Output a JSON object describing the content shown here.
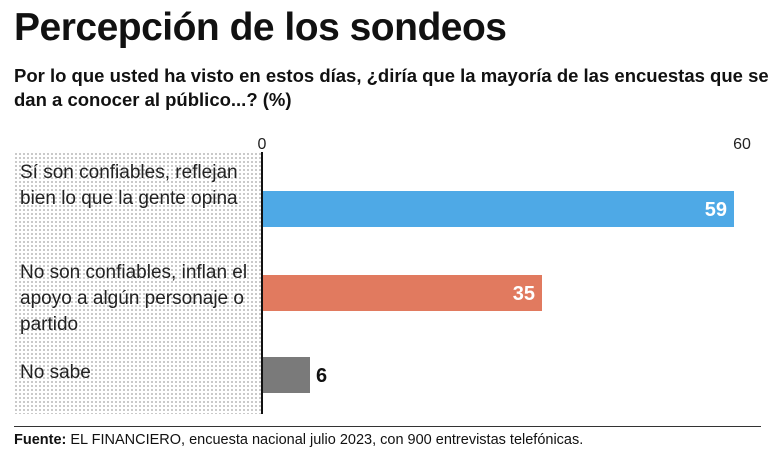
{
  "title": "Percepción de los sondeos",
  "subtitle": "Por lo que usted ha visto en estos días, ¿diría que la mayoría de las encuestas que se dan a conocer al público...? (%)",
  "chart_data": {
    "type": "bar",
    "orientation": "horizontal",
    "categories": [
      "Sí son confiables, reflejan bien lo que la gente opina",
      "No son confiables, inflan el apoyo a algún personaje o partido",
      "No sabe"
    ],
    "values": [
      59,
      35,
      6
    ],
    "value_labels": [
      "59",
      "35",
      "6"
    ],
    "colors": [
      "#4ea9e6",
      "#e17a5f",
      "#7a7a7a"
    ],
    "xlim": [
      0,
      60
    ],
    "x_tick_labels": [
      "0",
      "60"
    ],
    "grid": false
  },
  "source": {
    "label": "Fuente:",
    "text": " EL FINANCIERO, encuesta nacional julio 2023, con 900 entrevistas telefónicas."
  }
}
